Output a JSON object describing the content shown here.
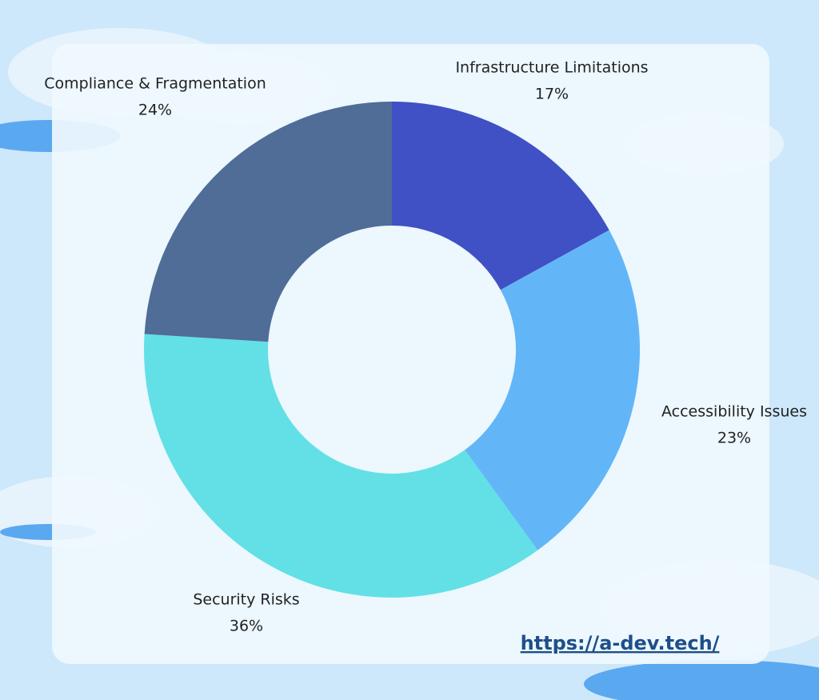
{
  "chart_data": {
    "type": "donut",
    "categories": [
      "Infrastructure Limitations",
      "Accessibility Issues",
      "Security Risks",
      "Compliance & Fragmentation"
    ],
    "values": [
      17,
      23,
      36,
      24
    ],
    "value_labels": [
      "17%",
      "23%",
      "36%",
      "24%"
    ],
    "colors": [
      "#3f51c4",
      "#62b6f7",
      "#62e0e6",
      "#4f6d96"
    ],
    "annotations": [
      "https://a-dev.tech/"
    ]
  }
}
